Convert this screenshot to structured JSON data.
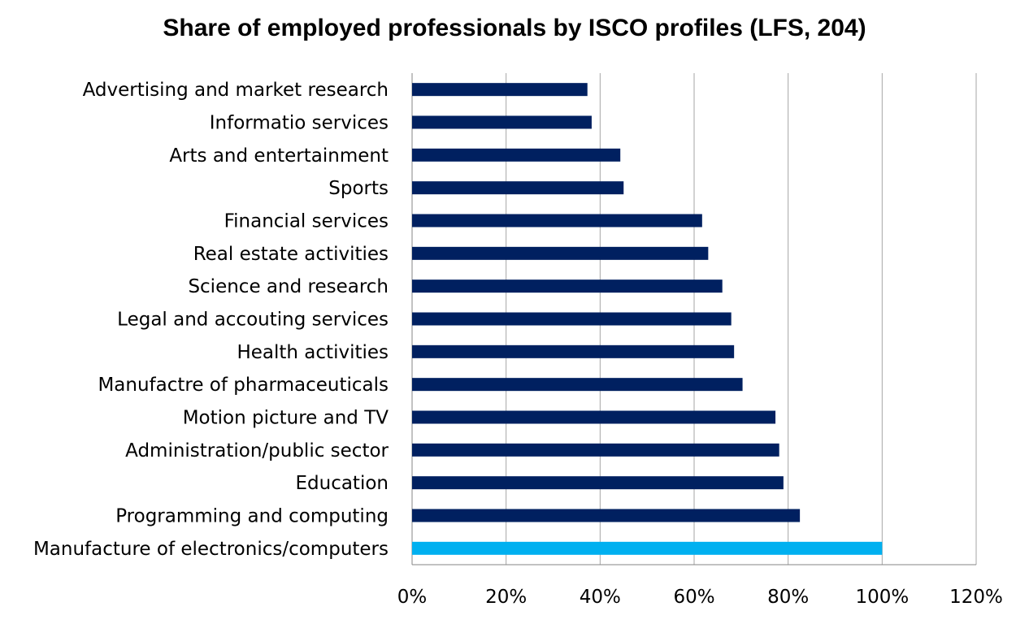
{
  "chart_data": {
    "type": "bar",
    "orientation": "horizontal",
    "title": "Share of employed professionals by ISCO profiles (LFS, 204)",
    "xlabel": "",
    "ylabel": "",
    "xlim": [
      0,
      120
    ],
    "x_ticks": [
      "0%",
      "20%",
      "40%",
      "60%",
      "80%",
      "100%",
      "120%"
    ],
    "grid": "vertical",
    "legend": "none",
    "colors": {
      "default": "#002060",
      "highlight": "#00B0F0"
    },
    "categories": [
      "Advertising and market research",
      "Informatio services",
      "Arts and entertainment",
      "Sports",
      "Financial services",
      "Real estate activities",
      "Science and research",
      "Legal and accouting services",
      "Health activities",
      "Manufactre of pharmaceuticals",
      "Motion picture and TV",
      "Administration/public sector",
      "Education",
      "Programming and computing",
      "Manufacture of electronics/computers"
    ],
    "values": [
      37.3,
      38.2,
      44.3,
      45.0,
      61.7,
      63.0,
      66.0,
      67.9,
      68.5,
      70.3,
      77.3,
      78.1,
      79.0,
      82.5,
      100.0
    ],
    "highlight_index": 14
  }
}
